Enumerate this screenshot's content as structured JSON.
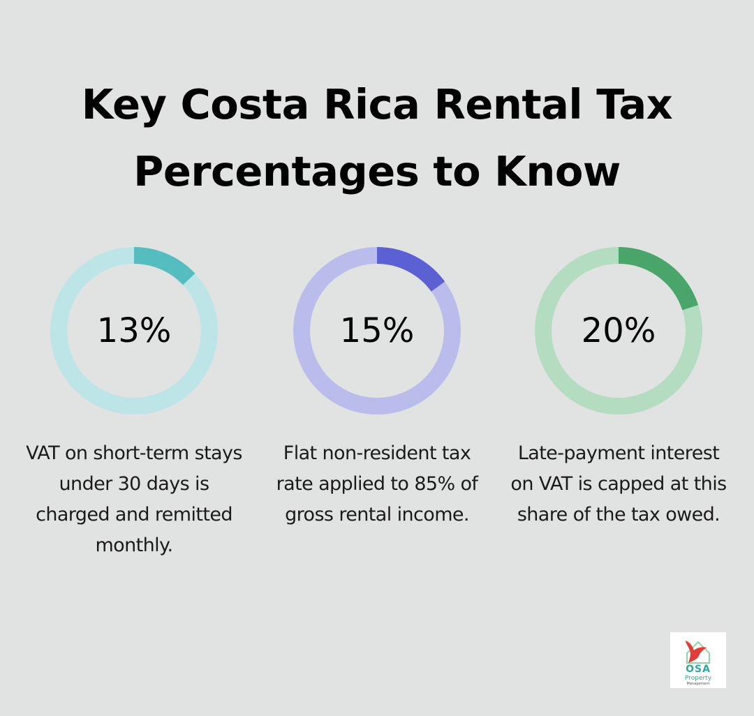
{
  "title": "Key Costa Rica Rental Tax Percentages to Know",
  "stats": [
    {
      "value_label": "13%",
      "fraction": 0.13,
      "description": "VAT on short-term stays under 30 days is charged and remitted monthly.",
      "track_color": "#bde4e6",
      "fill_color": "#55bcc0"
    },
    {
      "value_label": "15%",
      "fraction": 0.15,
      "description": "Flat non-resident tax rate applied to 85% of gross rental income.",
      "track_color": "#babdec",
      "fill_color": "#5b60d2"
    },
    {
      "value_label": "20%",
      "fraction": 0.2,
      "description": "Late-payment interest on VAT is capped at this share of the tax owed.",
      "track_color": "#b3dcc0",
      "fill_color": "#4aa56b"
    }
  ],
  "logo": {
    "brand": "OSA",
    "line1": "Property",
    "line2": "Management",
    "icon": "bird-house-icon"
  }
}
